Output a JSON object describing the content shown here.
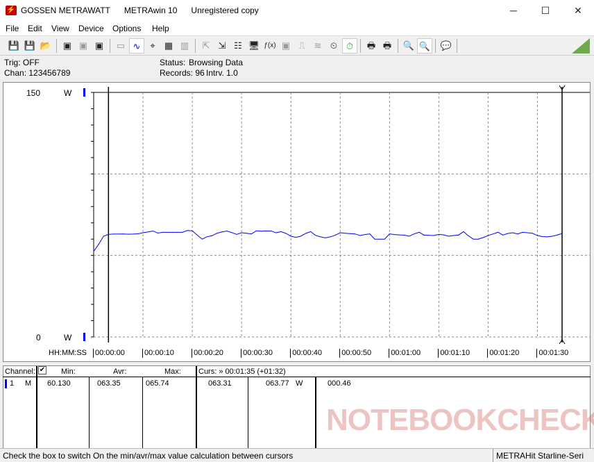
{
  "window": {
    "app_name": "GOSSEN METRAWATT",
    "product": "METRAwin 10",
    "license": "Unregistered copy",
    "minimize": "─",
    "maximize": "☐",
    "close": "✕"
  },
  "menu": [
    "File",
    "Edit",
    "View",
    "Device",
    "Options",
    "Help"
  ],
  "toolbar": {
    "icons": [
      "save-icon",
      "save-as-icon",
      "open-folder-icon",
      "device-read-icon",
      "device-clear-icon",
      "memory-read-icon",
      "display-icon",
      "wave-view-icon",
      "crosshair-icon",
      "table-view-icon",
      "bar-view-icon",
      "export-icon",
      "import-icon",
      "channel-config-icon",
      "monitor-icon",
      "function-icon",
      "channel-icon",
      "trigger-icon",
      "wave-filter-icon",
      "timer-icon",
      "stopwatch-icon",
      "print-preview-icon",
      "print-icon",
      "zoom-wave-icon",
      "zoom-fit-icon",
      "comment-icon"
    ]
  },
  "info": {
    "trig": "Trig: OFF",
    "chan": "Chan:  123456789",
    "status_label": "Status:",
    "status_value": "Browsing Data",
    "records": "Records: 96",
    "interval": "Intrv. 1.0"
  },
  "chart_data": {
    "type": "line",
    "ylim": [
      0,
      150
    ],
    "y_unit": "W",
    "y_tick_labels": [
      "150",
      "0"
    ],
    "xlabel": "HH:MM:SS",
    "x_tick_labels": [
      "00:00:00",
      "00:00:10",
      "00:00:20",
      "00:00:30",
      "00:00:40",
      "00:00:50",
      "00:01:00",
      "00:01:10",
      "00:01:20",
      "00:01:30"
    ],
    "xlim_seconds": [
      0,
      95
    ],
    "grid": true,
    "line_color": "#0000ff",
    "cursors_seconds": [
      3,
      95
    ],
    "series": [
      {
        "values": [
          52.5,
          56.8,
          61.8,
          62.9,
          63.1,
          63.1,
          63.2,
          63.0,
          63.1,
          63.3,
          63.9,
          64.4,
          65.0,
          63.7,
          64.2,
          64.2,
          64.2,
          64.2,
          64.2,
          65.3,
          65.1,
          62.5,
          60.0,
          61.5,
          62.1,
          63.6,
          64.4,
          65.0,
          64.0,
          62.9,
          63.9,
          63.6,
          63.2,
          65.1,
          64.9,
          65.0,
          65.0,
          63.9,
          64.6,
          63.5,
          61.8,
          61.1,
          61.8,
          63.5,
          64.6,
          62.3,
          61.4,
          60.8,
          61.4,
          62.4,
          63.9,
          63.6,
          63.4,
          63.2,
          62.2,
          62.8,
          63.2,
          60.0,
          60.0,
          60.0,
          63.2,
          62.8,
          62.6,
          62.5,
          61.8,
          63.2,
          64.2,
          62.5,
          62.3,
          62.2,
          62.9,
          62.6,
          61.8,
          62.2,
          62.5,
          64.6,
          62.0,
          60.0,
          60.0,
          61.0,
          62.2,
          63.2,
          64.2,
          62.5,
          63.5,
          63.9,
          63.2,
          64.2,
          63.9,
          63.6,
          62.2,
          61.6,
          61.4,
          61.8,
          62.5,
          63.5
        ]
      }
    ]
  },
  "table": {
    "headers": {
      "channel": "Channel:",
      "checkbox": "✔",
      "min": "Min:",
      "avr": "Avr:",
      "max": "Max:",
      "cursor": "Curs: » 00:01:35 (+01:32)"
    },
    "row": {
      "num": "1",
      "mode": "M",
      "min": "60.130",
      "avr": "063.35",
      "max": "065.74",
      "c1": "063.31",
      "c2": "063.77",
      "unit": "W",
      "diff": "000.46"
    },
    "channel_color": "#0000ff"
  },
  "watermark": "NOTEBOOKCHECK",
  "statusbar": {
    "hint": "Check the box to switch On the min/avr/max value calculation between cursors",
    "device": "METRAHit Starline-Seri"
  }
}
